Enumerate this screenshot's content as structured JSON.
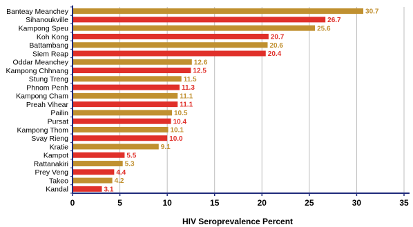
{
  "chart_data": {
    "type": "bar",
    "orientation": "horizontal",
    "xlabel": "HIV Seroprevalence Percent",
    "xlim": [
      0,
      35
    ],
    "xticks": [
      0,
      5,
      10,
      15,
      20,
      25,
      30,
      35
    ],
    "grid": true,
    "colors": [
      "#C09030",
      "#E0302A"
    ],
    "axis_color": "#1F2A7A",
    "categories": [
      "Banteay Meanchey",
      "Sihanoukville",
      "Kampong Speu",
      "Koh Kong",
      "Battambang",
      "Siem Reap",
      "Oddar Meanchey",
      "Kampong Chhnang",
      "Stung Treng",
      "Phnom Penh",
      "Kampong Cham",
      "Preah Vihear",
      "Pailin",
      "Pursat",
      "Kampong Thom",
      "Svay Rieng",
      "Kratie",
      "Kampot",
      "Rattanakiri",
      "Prey Veng",
      "Takeo",
      "Kandal"
    ],
    "values": [
      30.7,
      26.7,
      25.6,
      20.7,
      20.6,
      20.4,
      12.6,
      12.5,
      11.5,
      11.3,
      11.1,
      11.1,
      10.5,
      10.4,
      10.1,
      10.0,
      9.1,
      5.5,
      5.3,
      4.4,
      4.2,
      3.1
    ],
    "value_labels": [
      "30.7",
      "26.7",
      "25.6",
      "20.7",
      "20.6",
      "20.4",
      "12.6",
      "12.5",
      "11.5",
      "11.3",
      "11.1",
      "11.1",
      "10.5",
      "10.4",
      "10.1",
      "10.0",
      "9.1",
      "5.5",
      "5.3",
      "4.4",
      "4.2",
      "3.1"
    ],
    "bar_colors": [
      "#C09030",
      "#E0302A",
      "#C09030",
      "#E0302A",
      "#C09030",
      "#E0302A",
      "#C09030",
      "#E0302A",
      "#C09030",
      "#E0302A",
      "#C09030",
      "#E0302A",
      "#C09030",
      "#E0302A",
      "#C09030",
      "#E0302A",
      "#C09030",
      "#E0302A",
      "#C09030",
      "#E0302A",
      "#C09030",
      "#E0302A"
    ],
    "label_colors": [
      "#C09030",
      "#E0302A",
      "#C09030",
      "#E0302A",
      "#C09030",
      "#E0302A",
      "#C09030",
      "#E0302A",
      "#C09030",
      "#E0302A",
      "#C09030",
      "#E0302A",
      "#C09030",
      "#E0302A",
      "#C09030",
      "#E0302A",
      "#C09030",
      "#E0302A",
      "#C09030",
      "#E0302A",
      "#C09030",
      "#E0302A"
    ]
  }
}
